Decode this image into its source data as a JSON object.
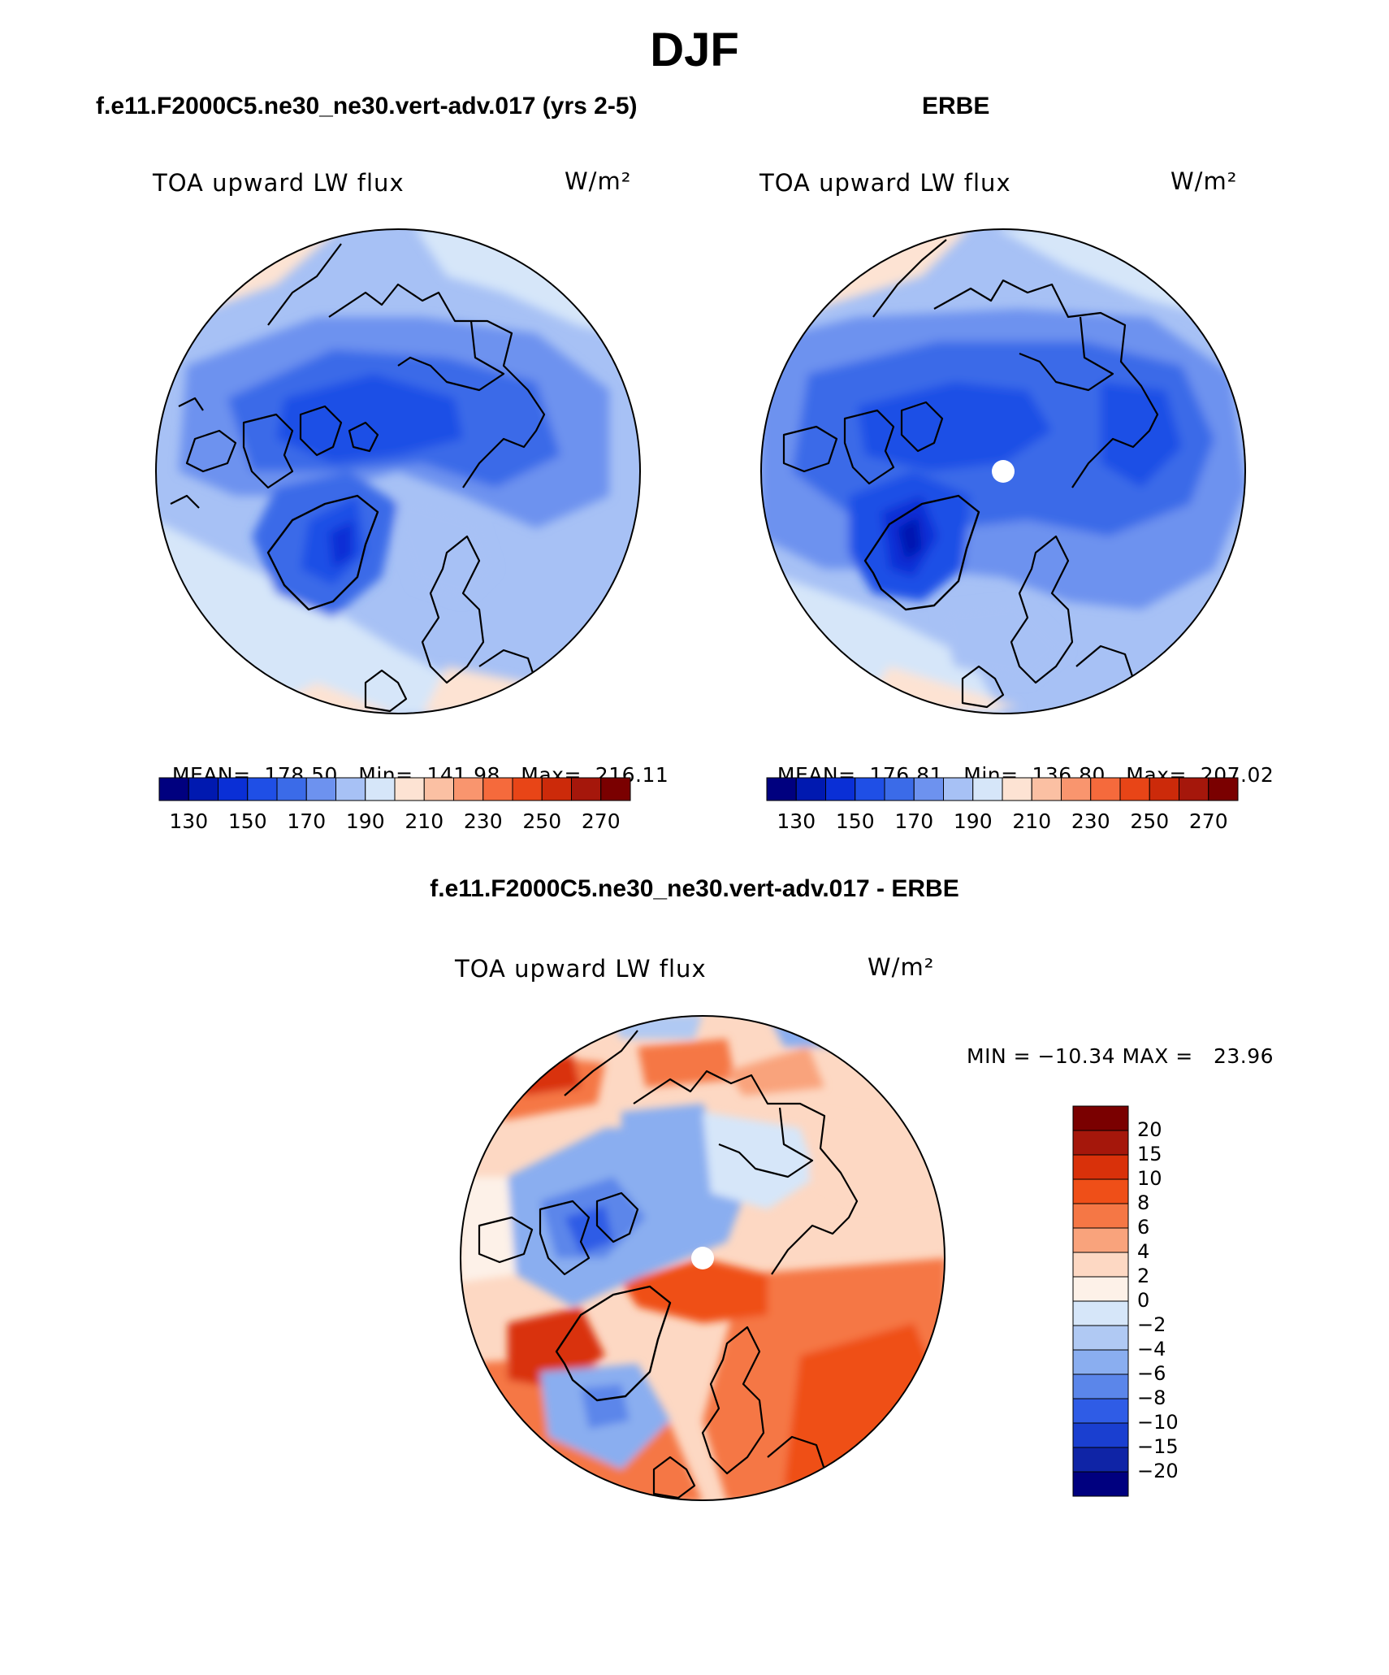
{
  "figure": {
    "season": "DJF",
    "panels": [
      {
        "title": "f.e11.F2000C5.ne30_ne30.vert-adv.017 (yrs 2-5)",
        "variable": "TOA upward LW flux",
        "units": "W/m²",
        "stats": {
          "mean": "MEAN=  178.50",
          "min": "Min=  141.98",
          "max": "Max=  216.11"
        },
        "colorbar_ticks": [
          "130",
          "150",
          "170",
          "190",
          "210",
          "230",
          "250",
          "270"
        ]
      },
      {
        "title": "ERBE",
        "variable": "TOA upward LW flux",
        "units": "W/m²",
        "stats": {
          "mean": "MEAN=  176.81",
          "min": "Min=  136.80",
          "max": "Max=  207.02"
        },
        "colorbar_ticks": [
          "130",
          "150",
          "170",
          "190",
          "210",
          "230",
          "250",
          "270"
        ]
      },
      {
        "title": "f.e11.F2000C5.ne30_ne30.vert-adv.017 - ERBE",
        "variable": "TOA upward LW flux",
        "units": "W/m²",
        "stats": {
          "minmax": "MIN = −10.34 MAX =   23.96"
        },
        "colorbar_ticks": [
          "20",
          "15",
          "10",
          "8",
          "6",
          "4",
          "2",
          "0",
          "−2",
          "−4",
          "−6",
          "−8",
          "−10",
          "−15",
          "−20"
        ]
      }
    ],
    "abs_colors": [
      "#00007f",
      "#0019b0",
      "#0a2fd6",
      "#1f4fe6",
      "#3b6be8",
      "#6d92ef",
      "#a7c1f5",
      "#d6e6f9",
      "#fde3d3",
      "#fbc0a3",
      "#f9956e",
      "#f56a3c",
      "#e84517",
      "#cc2a0a",
      "#a5170b",
      "#7a0000"
    ],
    "diff_colors": [
      "#7a0000",
      "#a5170b",
      "#d9310a",
      "#ef4f18",
      "#f57745",
      "#f9a37c",
      "#fdd8c3",
      "#fdf1e8",
      "#d6e6f9",
      "#b0c9f3",
      "#8aaef0",
      "#5b86ea",
      "#2f5ce6",
      "#1a3fd0",
      "#0f24a6",
      "#00007f"
    ]
  }
}
